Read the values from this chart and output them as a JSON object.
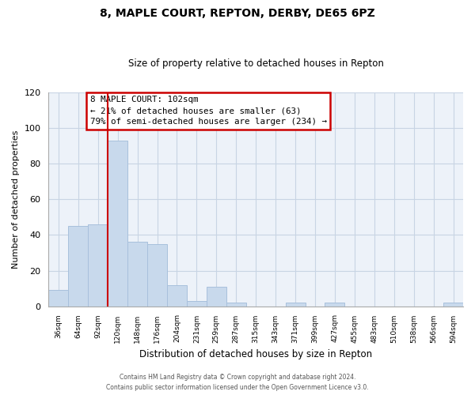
{
  "title": "8, MAPLE COURT, REPTON, DERBY, DE65 6PZ",
  "subtitle": "Size of property relative to detached houses in Repton",
  "xlabel": "Distribution of detached houses by size in Repton",
  "ylabel": "Number of detached properties",
  "bar_labels": [
    "36sqm",
    "64sqm",
    "92sqm",
    "120sqm",
    "148sqm",
    "176sqm",
    "204sqm",
    "231sqm",
    "259sqm",
    "287sqm",
    "315sqm",
    "343sqm",
    "371sqm",
    "399sqm",
    "427sqm",
    "455sqm",
    "483sqm",
    "510sqm",
    "538sqm",
    "566sqm",
    "594sqm"
  ],
  "bar_values": [
    9,
    45,
    46,
    93,
    36,
    35,
    12,
    3,
    11,
    2,
    0,
    0,
    2,
    0,
    2,
    0,
    0,
    0,
    0,
    0,
    2
  ],
  "bar_color": "#c8d9ec",
  "bar_edge_color": "#a8c0dc",
  "vline_color": "#cc0000",
  "ylim": [
    0,
    120
  ],
  "yticks": [
    0,
    20,
    40,
    60,
    80,
    100,
    120
  ],
  "annotation_title": "8 MAPLE COURT: 102sqm",
  "annotation_line1": "← 21% of detached houses are smaller (63)",
  "annotation_line2": "79% of semi-detached houses are larger (234) →",
  "annotation_box_color": "#ffffff",
  "annotation_box_edge": "#cc0000",
  "footer_line1": "Contains HM Land Registry data © Crown copyright and database right 2024.",
  "footer_line2": "Contains public sector information licensed under the Open Government Licence v3.0.",
  "grid_color": "#c8d4e4",
  "background_color": "#edf2f9"
}
